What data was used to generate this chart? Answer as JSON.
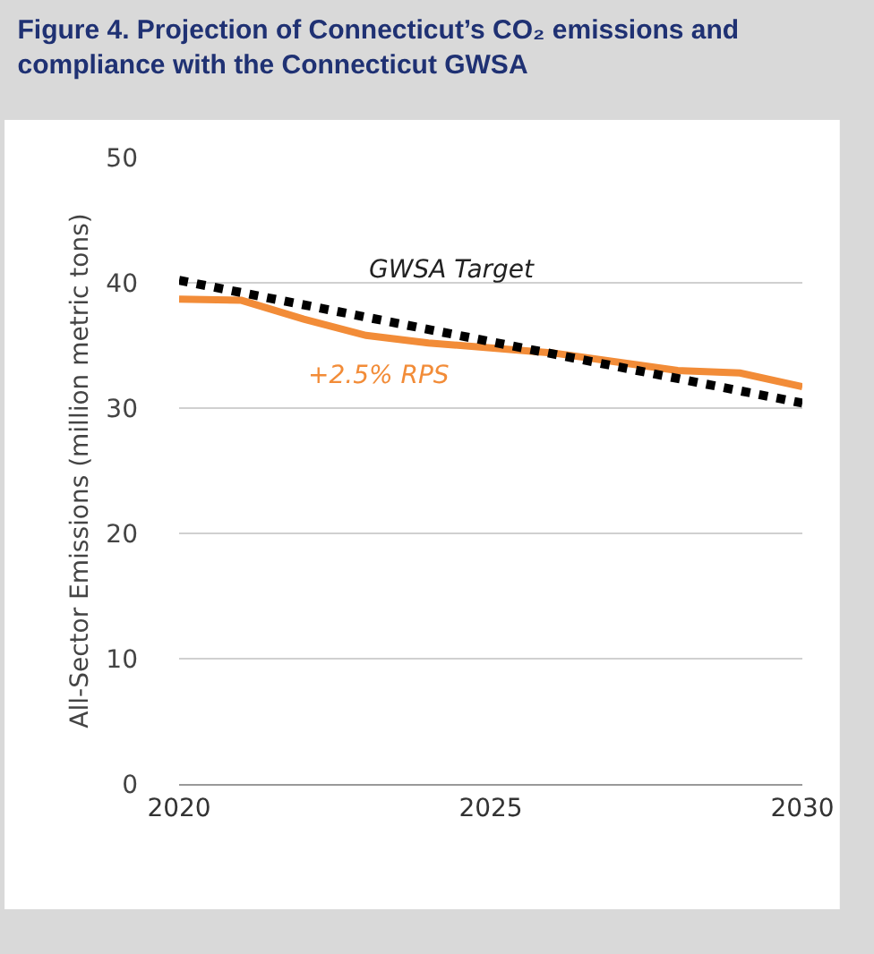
{
  "chart_data": {
    "type": "line",
    "title": "Figure 4. Projection of Connecticut’s CO₂ emissions and compliance with the Connecticut GWSA",
    "ylabel": "All-Sector Emissions (million metric tons)",
    "x": [
      2020,
      2021,
      2022,
      2023,
      2024,
      2025,
      2026,
      2027,
      2028,
      2029,
      2030
    ],
    "series": [
      {
        "name": "+2.5% RPS",
        "color": "#f28c38",
        "line_style": "solid",
        "values": [
          38.7,
          38.6,
          37.1,
          35.8,
          35.2,
          34.8,
          34.4,
          33.7,
          33.0,
          32.8,
          31.7
        ]
      },
      {
        "name": "GWSA Target",
        "color": "#000000",
        "line_style": "dotted",
        "x": [
          2020,
          2030
        ],
        "values": [
          40.2,
          30.4
        ]
      }
    ],
    "xlim": [
      2020,
      2030
    ],
    "xticks": [
      2020,
      2025,
      2030
    ],
    "ylim": [
      0,
      50
    ],
    "yticks": [
      0,
      10,
      20,
      30,
      40,
      50
    ],
    "grid": "y",
    "legend": false,
    "marker": "none"
  }
}
